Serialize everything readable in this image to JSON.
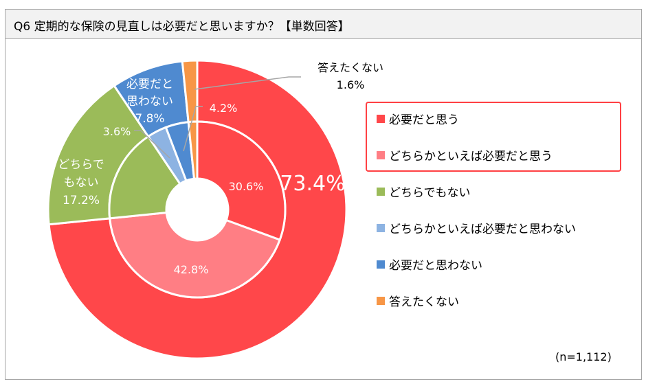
{
  "chart_data": {
    "type": "donut",
    "title": "Q6 定期的な保険の見直しは必要だと思いますか？【単数回答】",
    "note": "(n=1,112)",
    "legend": [
      "必要だと思う",
      "どちらかといえば必要だと思う",
      "どちらでもない",
      "どちらかといえば必要だと思わない",
      "必要だと思わない",
      "答えたくない"
    ],
    "legend_placement": "right",
    "colors": [
      "#ff474a",
      "#ff7e84",
      "#9bbb59",
      "#8db3e2",
      "#4f8ad0",
      "#f79646"
    ],
    "inner_ring": {
      "categories": [
        "必要だと思う",
        "どちらかといえば必要だと思う",
        "どちらでもない",
        "どちらかといえば必要だと思わない",
        "必要だと思わない",
        "答えたくない"
      ],
      "values": [
        30.6,
        42.8,
        17.2,
        3.6,
        4.2,
        1.6
      ],
      "labels": [
        "30.6%",
        "42.8%",
        "",
        "3.6%",
        "4.2%",
        ""
      ]
    },
    "outer_ring": {
      "categories": [
        "必要だと思う",
        "どちらでもない",
        "必要だと思わない",
        "答えたくない"
      ],
      "values": [
        73.4,
        17.2,
        7.8,
        1.6
      ],
      "colors": [
        "#ff474a",
        "#9bbb59",
        "#4f8ad0",
        "#f79646"
      ],
      "labels": [
        [
          "73.4%"
        ],
        [
          "どちらで",
          "もない",
          "17.2%"
        ],
        [
          "必要だと",
          "思わない",
          "7.8%"
        ],
        [
          "答えたくない",
          "1.6%"
        ]
      ]
    }
  }
}
